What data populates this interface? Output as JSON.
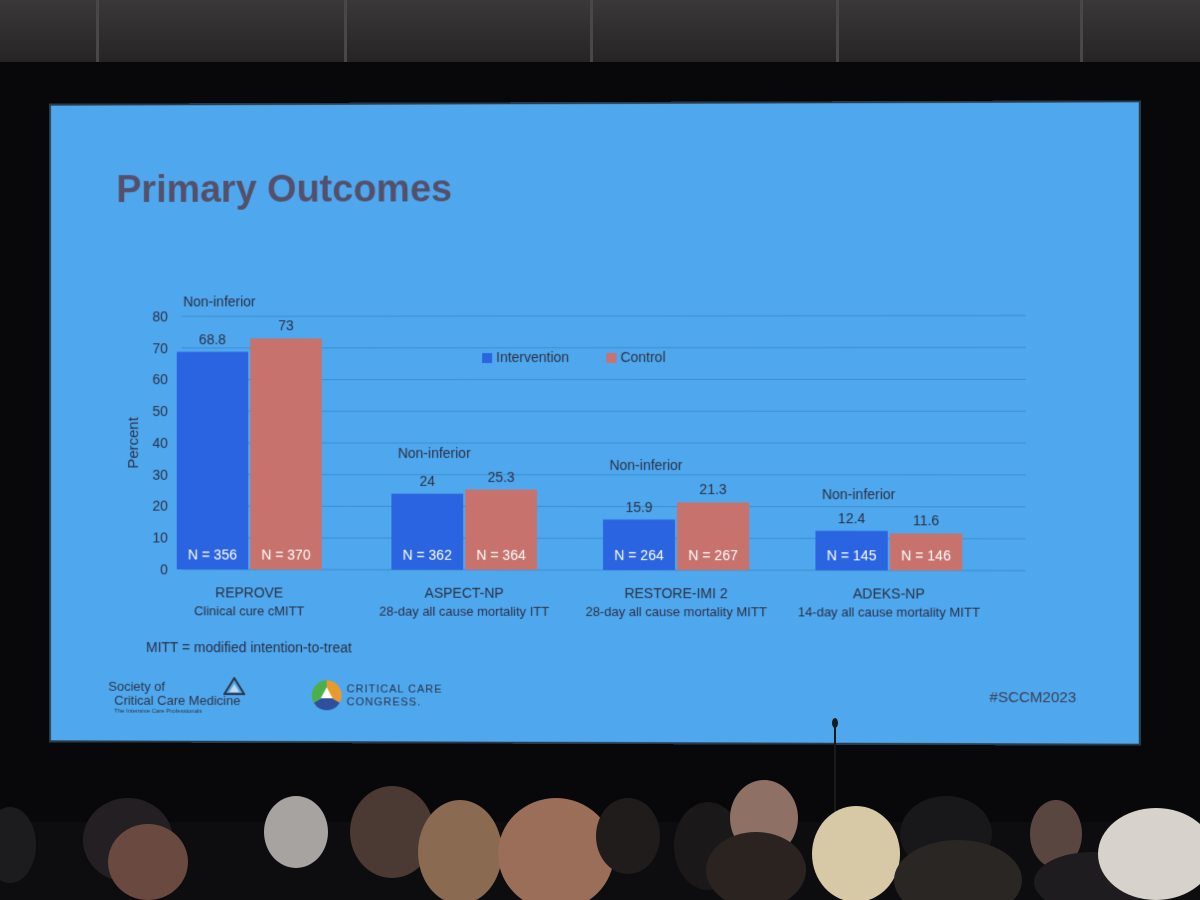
{
  "slide": {
    "title": "Primary Outcomes",
    "footnote": "MITT = modified intention-to-treat",
    "hashtag": "#SCCM2023",
    "logos": {
      "sccm_line1": "Society of",
      "sccm_line2": "Critical Care Medicine",
      "sccm_tagline": "The Intensive Care Professionals",
      "congress_line1": "CRITICAL CARE",
      "congress_line2": "CONGRESS."
    }
  },
  "colors": {
    "slide_background": "#4fa8ee",
    "intervention": "#2a64e0",
    "control": "#c7726c",
    "title": "#54506a"
  },
  "chart_data": {
    "type": "bar",
    "categories": [
      "REPROVE",
      "ASPECT-NP",
      "RESTORE-IMI 2",
      "ADEKS-NP"
    ],
    "subtitles": [
      "Clinical cure cMITT",
      "28-day all cause mortality ITT",
      "28-day all cause mortality MITT",
      "14-day all cause mortality MITT"
    ],
    "annotations": [
      "Non-inferior",
      "Non-inferior",
      "Non-inferior",
      "Non-inferior"
    ],
    "series": [
      {
        "name": "Intervention",
        "values": [
          68.8,
          24,
          15.9,
          12.4
        ],
        "value_labels": [
          "68.8",
          "24",
          "15.9",
          "12.4"
        ],
        "n_labels": [
          "N = 356",
          "N = 362",
          "N = 264",
          "N = 145"
        ]
      },
      {
        "name": "Control",
        "values": [
          73,
          25.3,
          21.3,
          11.6
        ],
        "value_labels": [
          "73",
          "25.3",
          "21.3",
          "11.6"
        ],
        "n_labels": [
          "N = 370",
          "N = 364",
          "N = 267",
          "N = 146"
        ]
      }
    ],
    "ylabel": "Percent",
    "xlabel": "",
    "ylim": [
      0,
      80
    ],
    "yticks": [
      "0",
      "10",
      "20",
      "30",
      "40",
      "50",
      "60",
      "70",
      "80"
    ],
    "grid": true,
    "legend_position": "top-center"
  }
}
